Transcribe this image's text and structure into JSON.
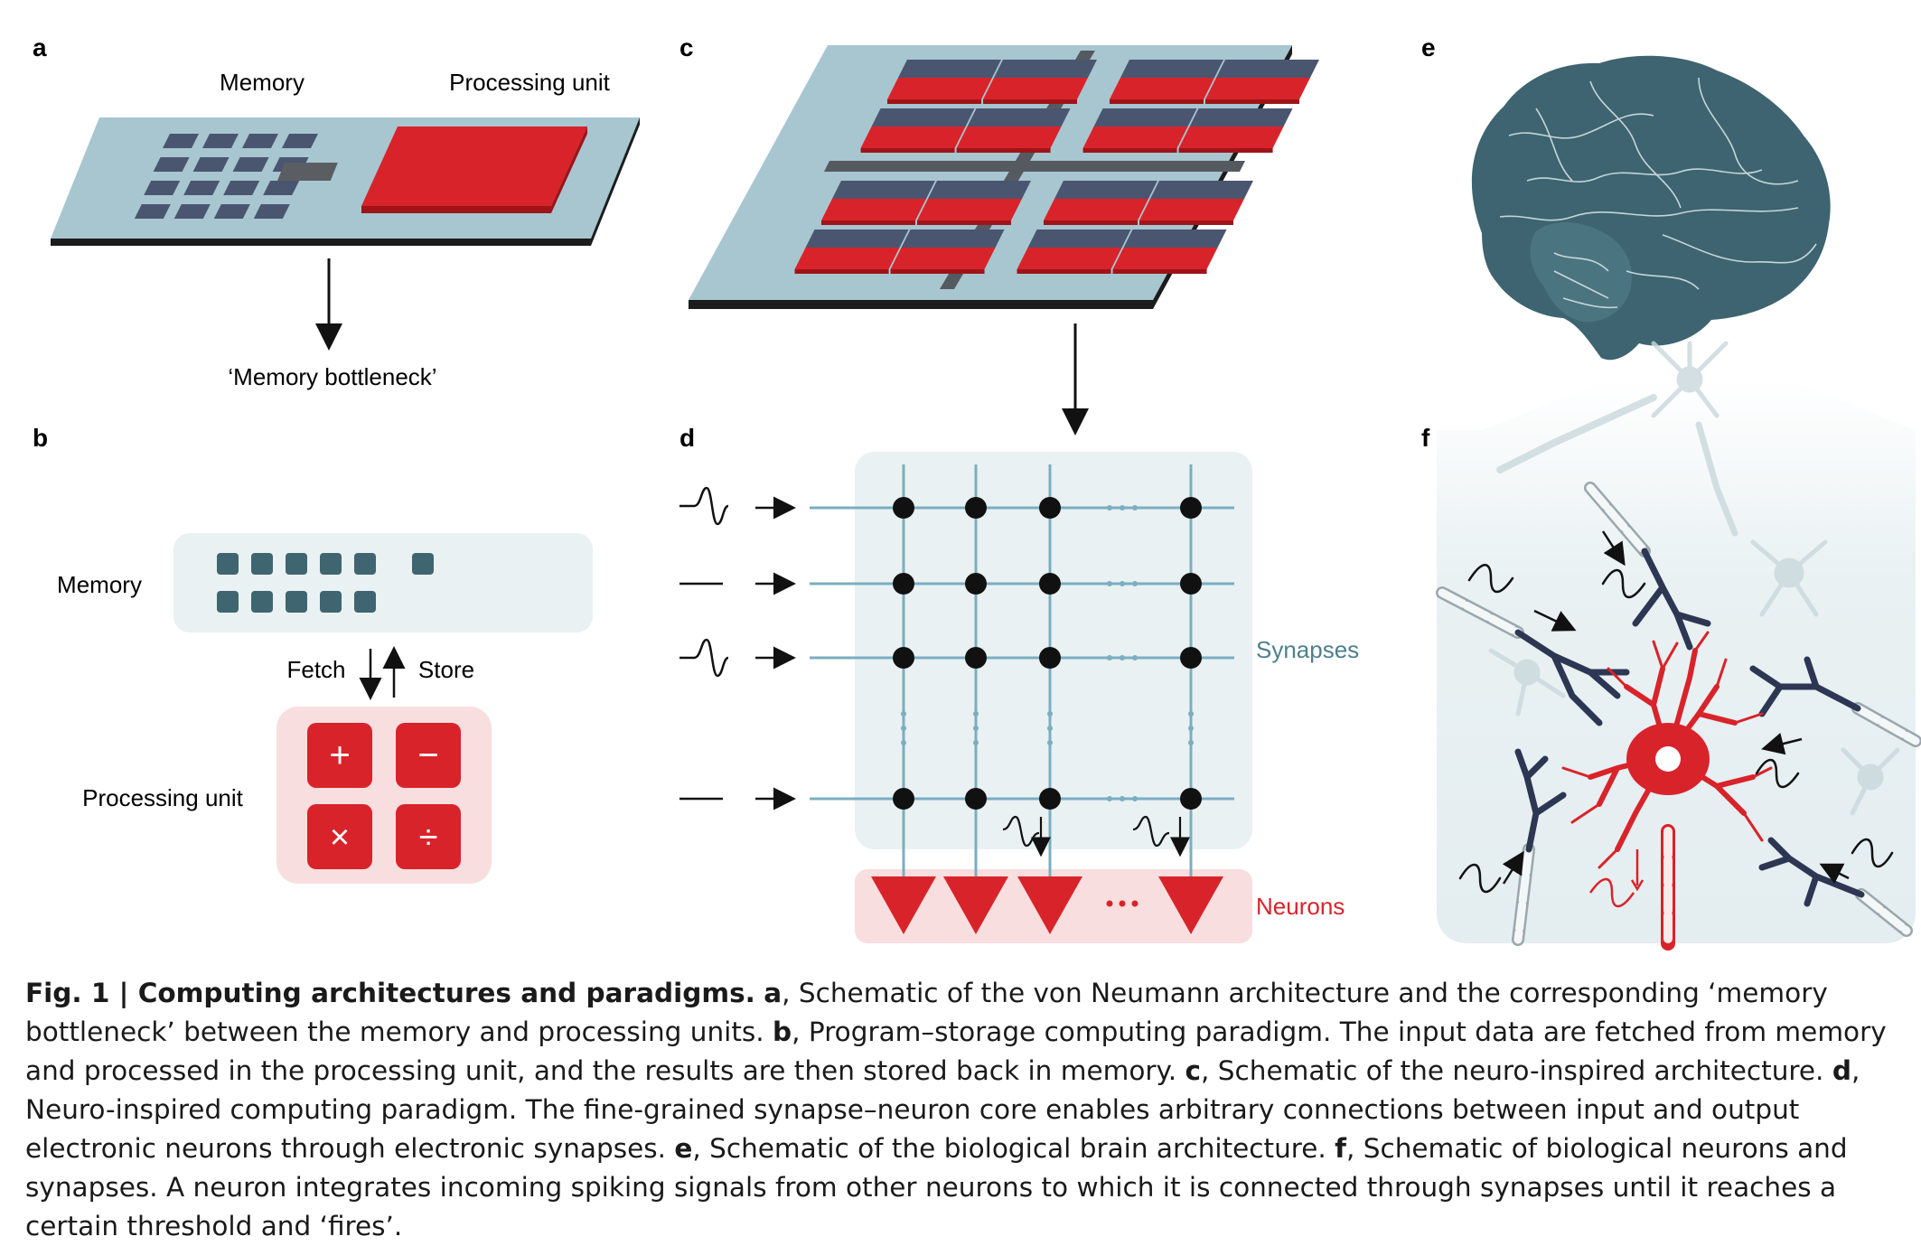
{
  "panels": {
    "a": {
      "letter": "a",
      "memory_label": "Memory",
      "processing_label": "Processing unit",
      "bottleneck_label": "‘Memory bottleneck’"
    },
    "b": {
      "letter": "b",
      "memory_label": "Memory",
      "fetch_label": "Fetch",
      "store_label": "Store",
      "processing_label": "Processing unit",
      "ops": [
        "+",
        "−",
        "×",
        "÷"
      ]
    },
    "c": {
      "letter": "c"
    },
    "d": {
      "letter": "d",
      "synapses_label": "Synapses",
      "neurons_label": "Neurons",
      "ellipsis": "···"
    },
    "e": {
      "letter": "e"
    },
    "f": {
      "letter": "f"
    }
  },
  "caption": {
    "fig_title": "Fig. 1 | Computing architectures and paradigms.",
    "parts": [
      {
        "letter": "a",
        "text": ", Schematic of the von Neumann architecture and the corresponding ‘memory bottleneck’ between the memory and processing units. "
      },
      {
        "letter": "b",
        "text": ", Program–storage computing paradigm. The input data are fetched from memory and processed in the processing unit, and the results are then stored back in memory. "
      },
      {
        "letter": "c",
        "text": ", Schematic of the neuro-inspired architecture. "
      },
      {
        "letter": "d",
        "text": ", Neuro-inspired computing paradigm. The fine-grained synapse–neuron core enables arbitrary connections between input and output electronic neurons through electronic synapses. "
      },
      {
        "letter": "e",
        "text": ", Schematic of the biological brain architecture. "
      },
      {
        "letter": "f",
        "text": ", Schematic of biological neurons and synapses. A neuron integrates incoming spiking signals from other neurons to which it is connected through synapses until it reaches a certain threshold and ‘fires’."
      }
    ]
  },
  "colors": {
    "board": "#a7c6d0",
    "chip_dark": "#4a5670",
    "chip_red": "#d9232a",
    "bus": "#555a60",
    "grid_line": "#7aaec0",
    "panel_bg": "#e9f1f3",
    "red_bg": "#f8dede",
    "brain": "#3d6470",
    "synapse_text": "#4f7f8e",
    "neuron_red": "#d9232a"
  },
  "icons": [
    "down-arrow-icon",
    "up-arrow-icon",
    "spike-icon",
    "flat-signal-icon",
    "neuron-triangle-icon",
    "brain-icon",
    "neuron-cell-icon"
  ]
}
